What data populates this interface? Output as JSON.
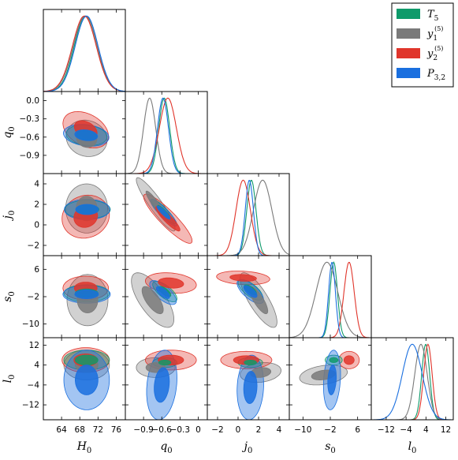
{
  "chart_data": {
    "type": "corner",
    "parameters": [
      {
        "key": "H0",
        "label": "H",
        "sub": "0",
        "range": [
          60,
          78
        ],
        "ticks": [
          64,
          68,
          72,
          76
        ]
      },
      {
        "key": "q0",
        "label": "q",
        "sub": "0",
        "range": [
          -1.2,
          0.15
        ],
        "ticks": [
          -0.9,
          -0.6,
          -0.3,
          0.0
        ]
      },
      {
        "key": "j0",
        "label": "j",
        "sub": "0",
        "range": [
          -3,
          5
        ],
        "ticks": [
          -2,
          0,
          2,
          4
        ]
      },
      {
        "key": "s0",
        "label": "s",
        "sub": "0",
        "range": [
          -14,
          10
        ],
        "ticks": [
          -10,
          -2,
          6
        ]
      },
      {
        "key": "l0",
        "label": "l",
        "sub": "0",
        "range": [
          -18,
          15
        ],
        "ticks": [
          -12,
          -4,
          4,
          12
        ]
      }
    ],
    "side_ticks": {
      "q0": [
        0.0,
        -0.3,
        -0.6,
        -0.9
      ],
      "j0": [
        4,
        2,
        0,
        -2
      ],
      "s0": [
        6,
        -2,
        -10
      ],
      "l0": [
        12,
        4,
        -4,
        -12
      ]
    },
    "series": [
      {
        "id": "T5",
        "name": "T",
        "sub": "5",
        "sup": "",
        "color": "#0f9a6a",
        "means": [
          69.3,
          -0.56,
          1.3,
          -1.0,
          3.9
        ],
        "sigmas": [
          2.5,
          0.09,
          0.45,
          1.1,
          1.6
        ],
        "corr": 0.0
      },
      {
        "id": "y1",
        "name": "y",
        "sub": "1",
        "sup": "(5)",
        "color": "#7a7a7a",
        "means": [
          69.2,
          -0.8,
          2.4,
          -3.0,
          2.0
        ],
        "sigmas": [
          2.6,
          0.1,
          0.9,
          3.2,
          2.5
        ],
        "corr": 0.0
      },
      {
        "id": "y2",
        "name": "y",
        "sub": "2",
        "sup": "(5)",
        "color": "#e0352b",
        "means": [
          69.0,
          -0.5,
          0.5,
          3.5,
          4.8
        ],
        "sigmas": [
          2.6,
          0.14,
          0.7,
          1.5,
          1.7
        ],
        "corr": 0.0
      },
      {
        "id": "P32",
        "name": "P",
        "sub": "3,2",
        "sup": "",
        "color": "#1a6fdf",
        "means": [
          69.5,
          -0.58,
          1.1,
          -1.5,
          -1.5
        ],
        "sigmas": [
          2.5,
          0.09,
          0.4,
          1.0,
          4.0
        ],
        "corr": 0.0
      }
    ],
    "pairs": [
      {
        "x": 0,
        "y": 1,
        "ellipses": [
          {
            "s": "y1",
            "c": [
              69.5,
              -0.62
            ],
            "r": [
              4.5,
              0.3
            ],
            "rho": -0.1
          },
          {
            "s": "y2",
            "c": [
              69.3,
              -0.48
            ],
            "r": [
              5,
              0.3
            ],
            "rho": -0.35
          },
          {
            "s": "T5",
            "c": [
              69.5,
              -0.57
            ],
            "r": [
              4.5,
              0.17
            ],
            "rho": -0.15
          },
          {
            "s": "P32",
            "c": [
              69.4,
              -0.57
            ],
            "r": [
              5,
              0.18
            ],
            "rho": -0.2
          }
        ]
      },
      {
        "x": 0,
        "y": 2,
        "ellipses": [
          {
            "s": "y1",
            "c": [
              69.5,
              1.6
            ],
            "r": [
              4.6,
              2.4
            ],
            "rho": 0
          },
          {
            "s": "y2",
            "c": [
              69.3,
              0.8
            ],
            "r": [
              5.2,
              2.1
            ],
            "rho": 0.1
          },
          {
            "s": "T5",
            "c": [
              69.7,
              1.5
            ],
            "r": [
              5,
              0.9
            ],
            "rho": 0
          },
          {
            "s": "P32",
            "c": [
              69.6,
              1.5
            ],
            "r": [
              5,
              1.0
            ],
            "rho": 0
          }
        ]
      },
      {
        "x": 0,
        "y": 3,
        "ellipses": [
          {
            "s": "y1",
            "c": [
              69.7,
              -3
            ],
            "r": [
              4.5,
              7.5
            ],
            "rho": 0
          },
          {
            "s": "y2",
            "c": [
              69.3,
              0.5
            ],
            "r": [
              5,
              3.5
            ],
            "rho": 0
          },
          {
            "s": "T5",
            "c": [
              69.5,
              -1
            ],
            "r": [
              5,
              2.5
            ],
            "rho": 0
          },
          {
            "s": "P32",
            "c": [
              69.5,
              -1.3
            ],
            "r": [
              5.2,
              2.6
            ],
            "rho": 0
          }
        ]
      },
      {
        "x": 0,
        "y": 4,
        "ellipses": [
          {
            "s": "y1",
            "c": [
              69.5,
              4
            ],
            "r": [
              5,
              6
            ],
            "rho": 0
          },
          {
            "s": "y2",
            "c": [
              69.3,
              6
            ],
            "r": [
              5.2,
              5
            ],
            "rho": 0
          },
          {
            "s": "T5",
            "c": [
              69.5,
              6
            ],
            "r": [
              5,
              4
            ],
            "rho": 0
          },
          {
            "s": "P32",
            "c": [
              69.5,
              -2
            ],
            "r": [
              5,
              12
            ],
            "rho": 0
          }
        ]
      },
      {
        "x": 1,
        "y": 2,
        "ellipses": [
          {
            "s": "y1",
            "c": [
              -0.7,
              2
            ],
            "r": [
              0.32,
              2.6
            ],
            "rho": -0.92
          },
          {
            "s": "y2",
            "c": [
              -0.5,
              0.6
            ],
            "r": [
              0.4,
              2.4
            ],
            "rho": -0.9
          },
          {
            "s": "T5",
            "c": [
              -0.57,
              1.3
            ],
            "r": [
              0.2,
              1.2
            ],
            "rho": -0.9
          },
          {
            "s": "P32",
            "c": [
              -0.57,
              1.2
            ],
            "r": [
              0.22,
              1.3
            ],
            "rho": -0.9
          }
        ]
      },
      {
        "x": 1,
        "y": 3,
        "ellipses": [
          {
            "s": "y1",
            "c": [
              -0.75,
              -3
            ],
            "r": [
              0.35,
              8
            ],
            "rho": -0.7
          },
          {
            "s": "y2",
            "c": [
              -0.45,
              2
            ],
            "r": [
              0.42,
              3
            ],
            "rho": -0.2
          },
          {
            "s": "T5",
            "c": [
              -0.55,
              -0.5
            ],
            "r": [
              0.2,
              3
            ],
            "rho": -0.7
          },
          {
            "s": "P32",
            "c": [
              -0.58,
              -0.8
            ],
            "r": [
              0.22,
              3.5
            ],
            "rho": -0.7
          }
        ]
      },
      {
        "x": 1,
        "y": 4,
        "ellipses": [
          {
            "s": "y1",
            "c": [
              -0.7,
              3
            ],
            "r": [
              0.32,
              4
            ],
            "rho": 0
          },
          {
            "s": "y2",
            "c": [
              -0.45,
              6
            ],
            "r": [
              0.42,
              4
            ],
            "rho": 0
          },
          {
            "s": "T5",
            "c": [
              -0.55,
              5
            ],
            "r": [
              0.2,
              2
            ],
            "rho": 0
          },
          {
            "s": "P32",
            "c": [
              -0.6,
              -4
            ],
            "r": [
              0.25,
              14
            ],
            "rho": 0.2
          }
        ]
      },
      {
        "x": 2,
        "y": 3,
        "ellipses": [
          {
            "s": "y1",
            "c": [
              2,
              -3
            ],
            "r": [
              1.8,
              8
            ],
            "rho": -0.8
          },
          {
            "s": "y2",
            "c": [
              0.5,
              3.5
            ],
            "r": [
              2.6,
              2
            ],
            "rho": -0.2
          },
          {
            "s": "T5",
            "c": [
              1.2,
              0
            ],
            "r": [
              1.2,
              3
            ],
            "rho": -0.7
          },
          {
            "s": "P32",
            "c": [
              1.2,
              -0.5
            ],
            "r": [
              1.3,
              3.5
            ],
            "rho": -0.7
          }
        ]
      },
      {
        "x": 2,
        "y": 4,
        "ellipses": [
          {
            "s": "y1",
            "c": [
              2.2,
              1
            ],
            "r": [
              2,
              4
            ],
            "rho": 0.2
          },
          {
            "s": "y2",
            "c": [
              0.8,
              6
            ],
            "r": [
              2.5,
              3.5
            ],
            "rho": 0
          },
          {
            "s": "T5",
            "c": [
              1.2,
              5
            ],
            "r": [
              1.2,
              2
            ],
            "rho": 0
          },
          {
            "s": "P32",
            "c": [
              1.2,
              -5
            ],
            "r": [
              1.3,
              13
            ],
            "rho": 0.1
          }
        ]
      },
      {
        "x": 3,
        "y": 4,
        "ellipses": [
          {
            "s": "y1",
            "c": [
              -4,
              0
            ],
            "r": [
              7,
              4
            ],
            "rho": 0.3
          },
          {
            "s": "y2",
            "c": [
              3.5,
              6
            ],
            "r": [
              3,
              3.5
            ],
            "rho": 0
          },
          {
            "s": "T5",
            "c": [
              -1,
              6
            ],
            "r": [
              2.5,
              2
            ],
            "rho": 0
          },
          {
            "s": "P32",
            "c": [
              -1.5,
              -2
            ],
            "r": [
              2.5,
              12
            ],
            "rho": 0.2
          }
        ]
      }
    ],
    "legend_position": "top-right",
    "grid": false
  }
}
